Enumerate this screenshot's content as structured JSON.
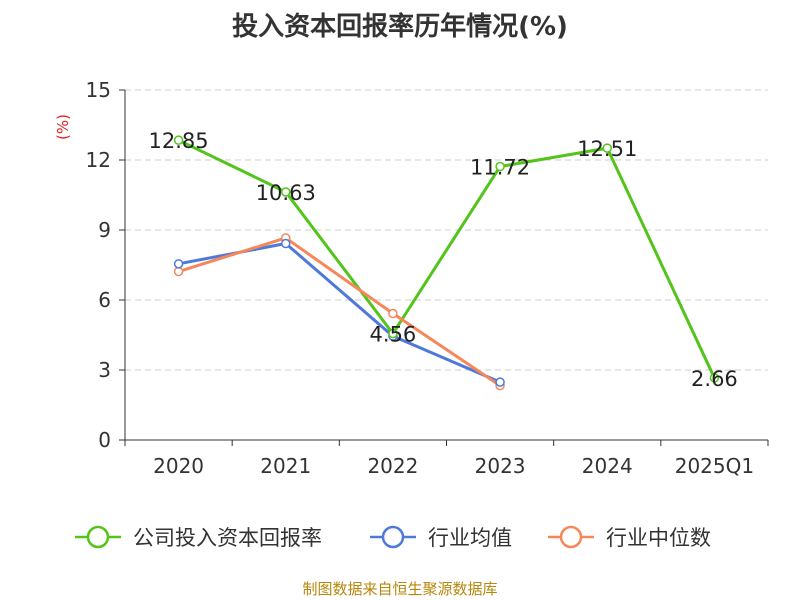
{
  "title": "投入资本回报率历年情况(%)",
  "source": "制图数据来自恒生聚源数据库",
  "chart_data": {
    "type": "line",
    "title": "投入资本回报率历年情况(%)",
    "ylabel": "(%)",
    "xlabel": "",
    "categories": [
      "2020",
      "2021",
      "2022",
      "2023",
      "2024",
      "2025Q1"
    ],
    "ylim": [
      0,
      15
    ],
    "yticks": [
      0,
      3,
      6,
      9,
      12,
      15
    ],
    "grid": true,
    "legend_position": "bottom",
    "series": [
      {
        "name": "公司投入资本回报率",
        "color": "#52c41a",
        "values": [
          12.85,
          10.63,
          4.56,
          11.72,
          12.51,
          2.66
        ],
        "labels": [
          "12.85",
          "10.63",
          "4.56",
          "11.72",
          "12.51",
          "2.66"
        ]
      },
      {
        "name": "行业均值",
        "color": "#4e79d9",
        "values": [
          7.55,
          8.42,
          4.45,
          2.48,
          null,
          null
        ]
      },
      {
        "name": "行业中位数",
        "color": "#f5885a",
        "values": [
          7.22,
          8.66,
          5.42,
          2.33,
          null,
          null
        ]
      }
    ]
  }
}
